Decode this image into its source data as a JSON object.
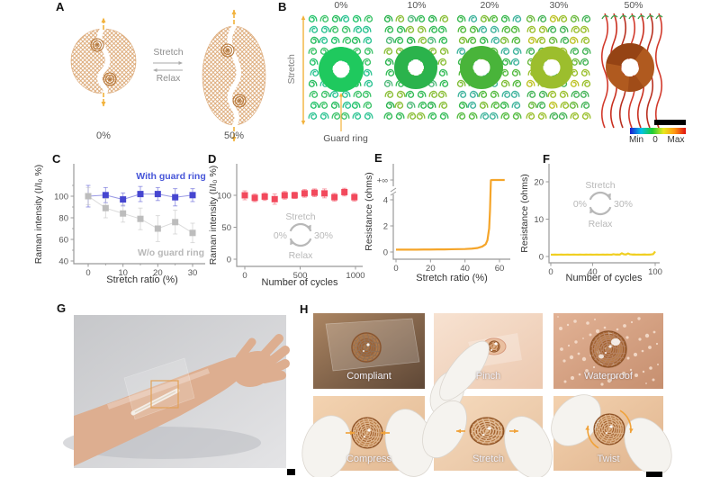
{
  "panels": {
    "a": "A",
    "b": "B",
    "c": "C",
    "d": "D",
    "e": "E",
    "f": "F",
    "g": "G",
    "h": "H"
  },
  "panel_a": {
    "stretch_label": "Stretch",
    "relax_label": "Relax",
    "state_left": "0%",
    "state_right": "50%",
    "mesh_color": "#dba774",
    "coil_color": "#b5773a",
    "arrow_color": "#f2b23c"
  },
  "panel_b": {
    "strain_labels": [
      "0%",
      "10%",
      "20%",
      "30%",
      "50%"
    ],
    "stretch_axis_label": "Stretch",
    "guard_ring_label": "Guard ring",
    "arrow_color": "#f2b23c",
    "ring_colors": [
      "#1fc95e",
      "#2bb34c",
      "#49b43a",
      "#9cbe2d",
      "#b05a1f"
    ],
    "ring_dark_50": "#8f3d12",
    "mesh_palettes": [
      [
        "#28c46e",
        "#2fc494",
        "#2abd60",
        "#40c46c"
      ],
      [
        "#2bb34f",
        "#36bc59",
        "#52ba7c",
        "#8cbf3a"
      ],
      [
        "#38b84e",
        "#55bb41",
        "#7fbd36",
        "#41b49e"
      ],
      [
        "#6cba40",
        "#9cc02f",
        "#bfc328",
        "#47b55a"
      ],
      [
        "#d23a2c",
        "#c92f1f",
        "#b93020",
        "#3aa04a"
      ]
    ],
    "colorbar": {
      "stops": [
        "#1c1ccf",
        "#00c2e8",
        "#1fcc33",
        "#e8e81f",
        "#ff9711",
        "#e01111"
      ],
      "min_label": "Min",
      "zero_label": "0",
      "max_label": "Max"
    }
  },
  "chart_data": [
    {
      "id": "C",
      "type": "scatter",
      "xlabel": "Stretch ratio  (%)",
      "ylabel": "Raman intensity (I/I₀ %)",
      "xticks": [
        0,
        10,
        20,
        30
      ],
      "yticks": [
        40,
        60,
        80,
        100
      ],
      "xlim": [
        -4,
        33
      ],
      "ylim": [
        37,
        130
      ],
      "series": [
        {
          "name": "With guard ring",
          "color": "#4646d0",
          "label_color": "#4655d8",
          "x": [
            0,
            5,
            10,
            15,
            20,
            25,
            30
          ],
          "y": [
            100,
            101,
            97,
            102,
            102,
            99,
            101
          ],
          "err": [
            10,
            7,
            6,
            7,
            6,
            8,
            6
          ]
        },
        {
          "name": "W/o guard ring",
          "color": "#bdbdbd",
          "label_color": "#b8b8b8",
          "x": [
            0,
            5,
            10,
            15,
            20,
            25,
            30
          ],
          "y": [
            100,
            89,
            84,
            79,
            70,
            76,
            66
          ],
          "err": [
            8,
            9,
            8,
            10,
            12,
            11,
            9
          ]
        }
      ]
    },
    {
      "id": "D",
      "type": "scatter",
      "xlabel": "Number of cycles",
      "ylabel": "Raman intensity (I/I₀ %)",
      "xticks": [
        0,
        500,
        1000
      ],
      "yticks": [
        0,
        50,
        100
      ],
      "xlim": [
        -70,
        1060
      ],
      "ylim": [
        0,
        150
      ],
      "series": [
        {
          "name": "",
          "color": "#f2495c",
          "label_color": "#f2495c",
          "x": [
            0,
            90,
            180,
            270,
            360,
            450,
            540,
            630,
            720,
            810,
            900,
            990
          ],
          "y": [
            100,
            96,
            98,
            94,
            100,
            100,
            103,
            104,
            103,
            97,
            105,
            97
          ],
          "err": [
            7,
            6,
            6,
            8,
            6,
            5,
            6,
            6,
            7,
            6,
            6,
            6
          ]
        }
      ],
      "inset_cycle": {
        "top": "Stretch",
        "left": "0%",
        "right": "30%",
        "bottom": "Relax"
      }
    },
    {
      "id": "E",
      "type": "line",
      "color": "#f5a52a",
      "xlabel": "Stretch ratio  (%)",
      "ylabel": "Resistance (ohms)",
      "xticks": [
        0,
        20,
        40,
        60
      ],
      "yticks": [
        0,
        2,
        4
      ],
      "infinity_label": "+∞",
      "xlim": [
        -2,
        68
      ],
      "ylim": [
        0,
        6
      ],
      "x": [
        0,
        4,
        8,
        12,
        16,
        20,
        24,
        28,
        32,
        36,
        40,
        44,
        47,
        50,
        52,
        53,
        54,
        54.5,
        55,
        56,
        58,
        60,
        62,
        63
      ],
      "y": [
        0.18,
        0.18,
        0.18,
        0.18,
        0.19,
        0.19,
        0.2,
        0.2,
        0.21,
        0.22,
        0.23,
        0.26,
        0.3,
        0.42,
        0.6,
        0.9,
        1.8,
        3.2,
        5.5,
        5.55,
        5.55,
        5.55,
        5.55,
        5.55
      ]
    },
    {
      "id": "F",
      "type": "line",
      "color": "#f0cf22",
      "xlabel": "Number of cycles",
      "ylabel": "Resistance (ohms)",
      "xticks": [
        0,
        40,
        100
      ],
      "yticks": [
        0,
        10,
        20
      ],
      "xlim": [
        -2,
        105
      ],
      "ylim": [
        0,
        22
      ],
      "x": [
        0,
        2,
        4,
        6,
        8,
        10,
        12,
        14,
        16,
        18,
        20,
        22,
        24,
        26,
        28,
        30,
        32,
        34,
        36,
        38,
        40,
        42,
        44,
        46,
        48,
        50,
        52,
        54,
        56,
        58,
        60,
        62,
        64,
        66,
        68,
        70,
        72,
        74,
        76,
        78,
        80,
        82,
        84,
        86,
        88,
        90,
        92,
        94,
        96,
        98,
        100
      ],
      "y": [
        0.5,
        0.48,
        0.51,
        0.49,
        0.5,
        0.52,
        0.49,
        0.5,
        0.51,
        0.48,
        0.5,
        0.52,
        0.5,
        0.49,
        0.51,
        0.5,
        0.48,
        0.52,
        0.5,
        0.51,
        0.49,
        0.5,
        0.52,
        0.48,
        0.5,
        0.51,
        0.49,
        0.52,
        0.5,
        0.48,
        0.62,
        0.52,
        0.55,
        0.5,
        0.88,
        0.6,
        0.55,
        0.82,
        0.58,
        0.52,
        0.55,
        0.5,
        0.53,
        0.5,
        0.52,
        0.55,
        0.5,
        0.52,
        0.55,
        0.62,
        1.35
      ],
      "inset_cycle": {
        "top": "Stretch",
        "left": "0%",
        "right": "30%",
        "bottom": "Relax"
      }
    }
  ],
  "panel_h": {
    "photos": [
      "Compliant",
      "Pinch",
      "Waterproof",
      "Compress",
      "Stretch",
      "Twist"
    ]
  }
}
